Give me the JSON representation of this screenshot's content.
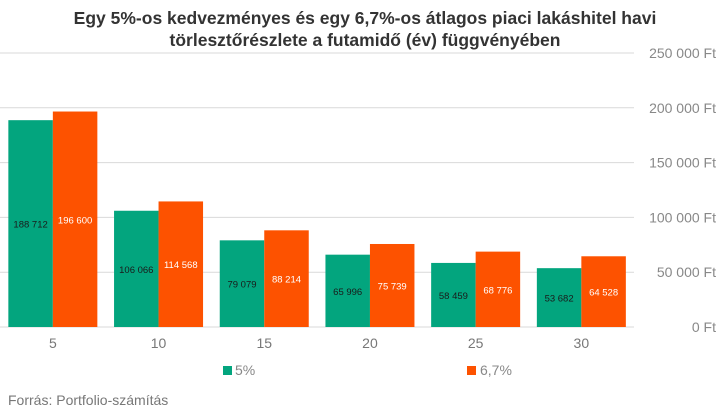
{
  "chart_data": {
    "type": "bar",
    "title_line1": "Egy 5%-os kedvezményes és egy 6,7%-os átlagos piaci lakáshitel havi",
    "title_line2": "törlesztőrészlete a futamidő (év) függvényében",
    "categories": [
      "5",
      "10",
      "15",
      "20",
      "25",
      "30"
    ],
    "series": [
      {
        "name": "5%",
        "color": "#03a57e",
        "label_color": "#1a1a1a",
        "values": [
          188712,
          106066,
          79079,
          65996,
          58459,
          53682
        ],
        "labels": [
          "188 712",
          "106 066",
          "79 079",
          "65 996",
          "58 459",
          "53 682"
        ]
      },
      {
        "name": "6,7%",
        "color": "#fd5200",
        "label_color": "#ffffff",
        "values": [
          196600,
          114568,
          88214,
          75739,
          68776,
          64528
        ],
        "labels": [
          "196 600",
          "114 568",
          "88 214",
          "75 739",
          "68 776",
          "64 528"
        ]
      }
    ],
    "ylim": [
      0,
      250000
    ],
    "yticks": [
      0,
      50000,
      100000,
      150000,
      200000,
      250000
    ],
    "ytick_labels": [
      "0 Ft",
      "50 000 Ft",
      "100 000 Ft",
      "150 000 Ft",
      "200 000 Ft",
      "250 000 Ft"
    ],
    "grid": true,
    "legend_position": "bottom"
  },
  "source": "Forrás: Portfolio-számítás"
}
